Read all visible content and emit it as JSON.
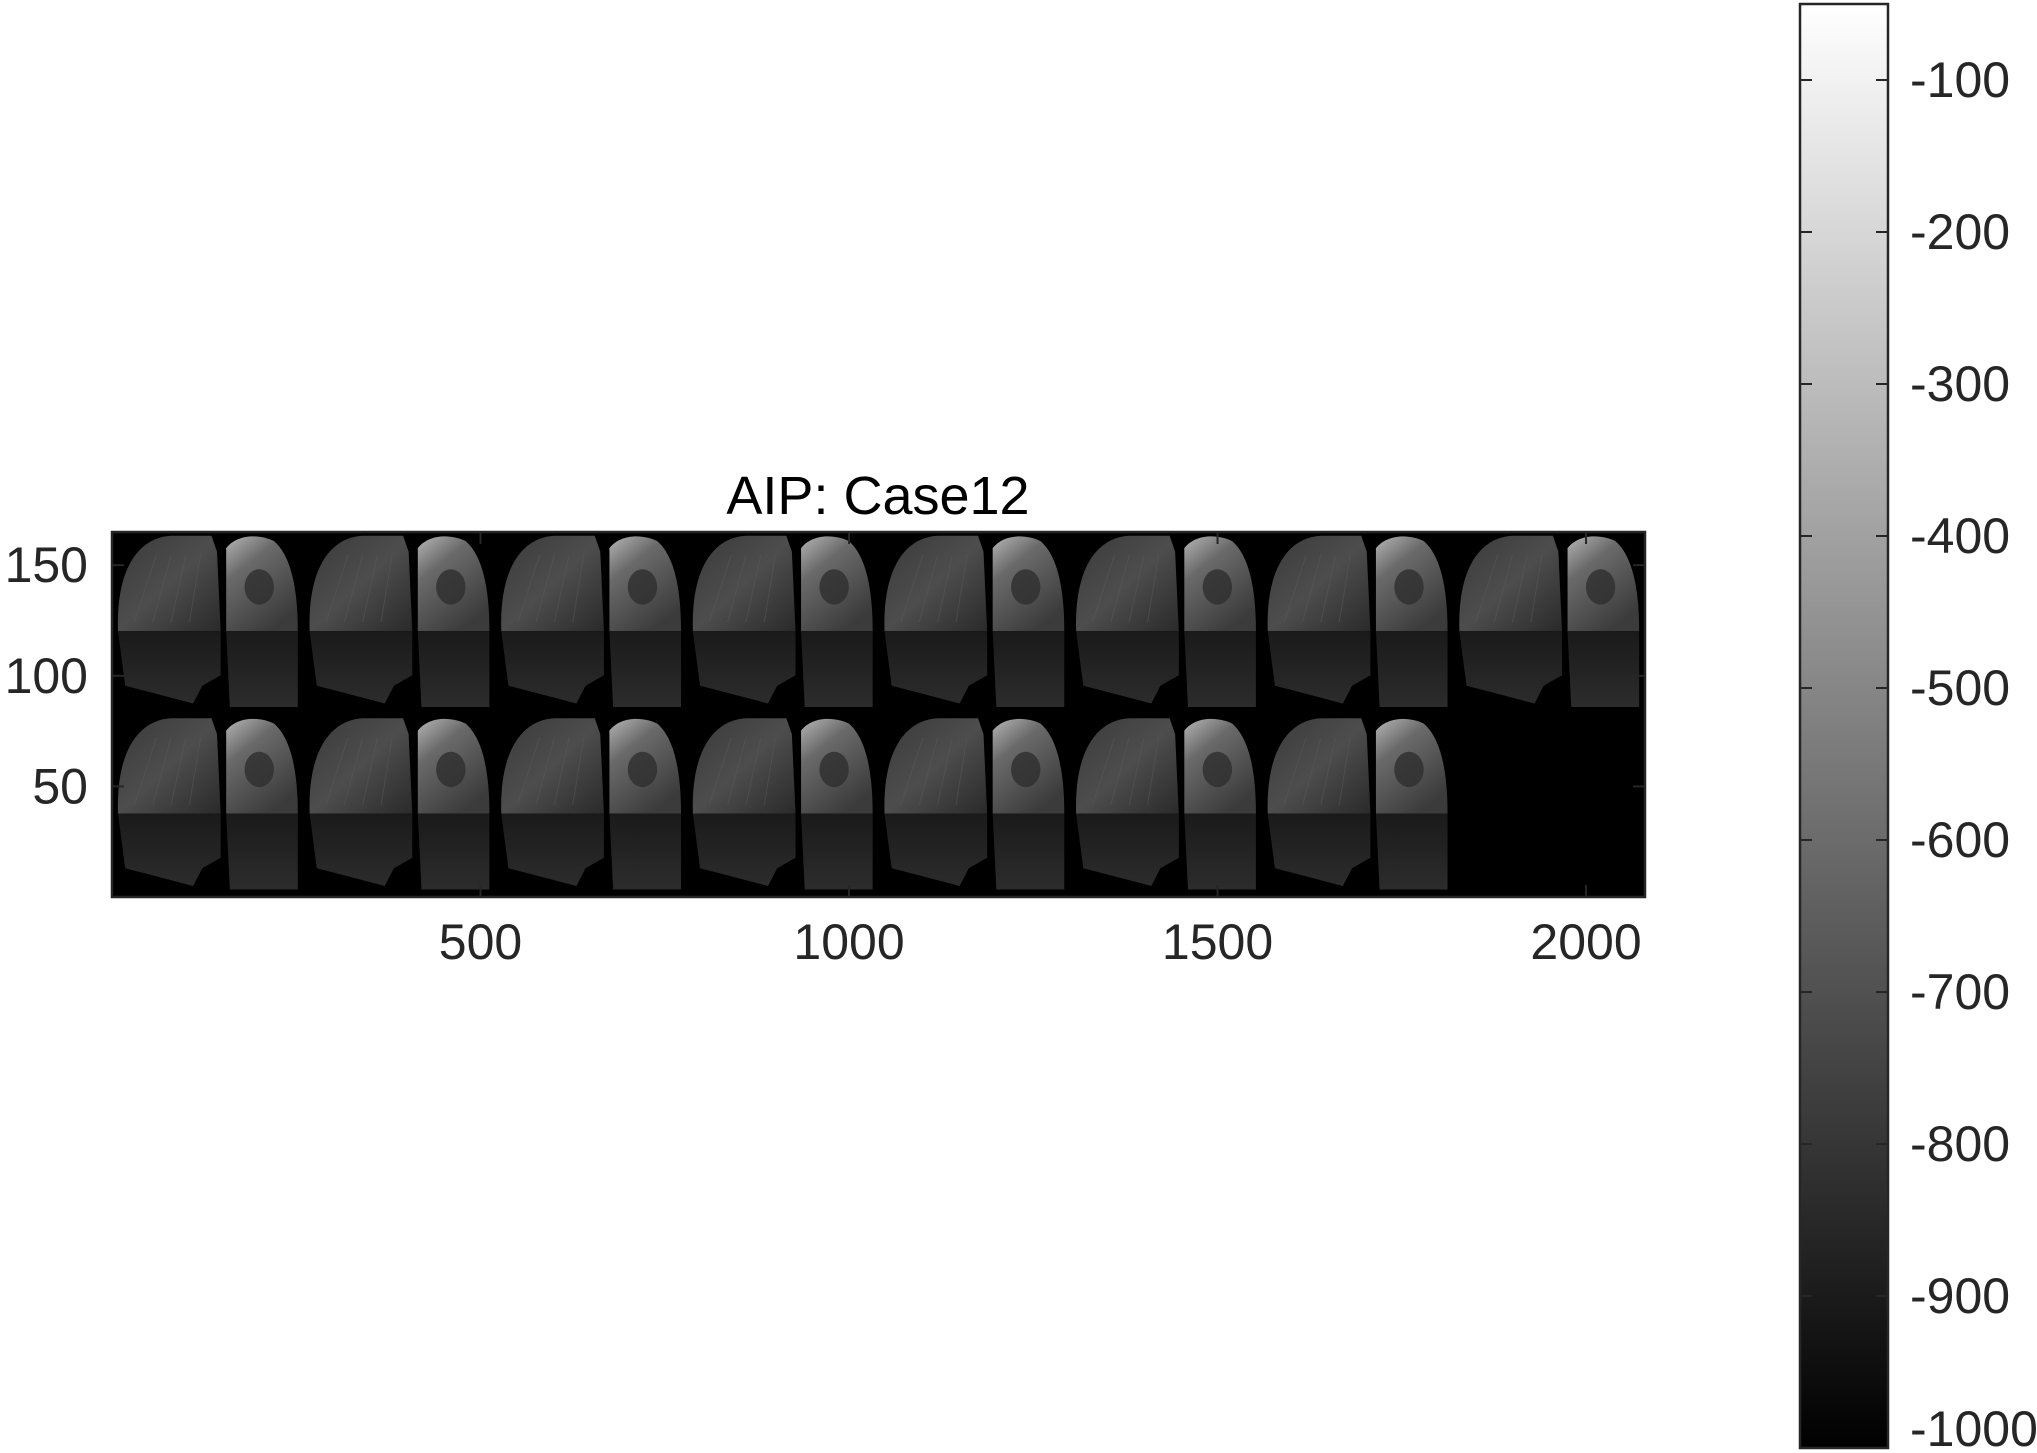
{
  "chart_data": {
    "type": "heatmap",
    "title": "AIP: Case12",
    "xlabel": "",
    "ylabel": "",
    "colormap": "gray",
    "x_ticks": [
      500,
      1000,
      1500,
      2000
    ],
    "y_ticks": [
      150,
      100,
      50
    ],
    "xlim": [
      0,
      2080
    ],
    "ylim": [
      0,
      165
    ],
    "y_direction": "normal",
    "montage": {
      "rows": 2,
      "cols": 8,
      "tiles_filled": 15,
      "tile_content": "axial lung slice average intensity projection"
    },
    "colorbar": {
      "ticks": [
        -100,
        -200,
        -300,
        -400,
        -500,
        -600,
        -700,
        -800,
        -900,
        -1000
      ],
      "range": [
        -1000,
        -50
      ]
    }
  }
}
